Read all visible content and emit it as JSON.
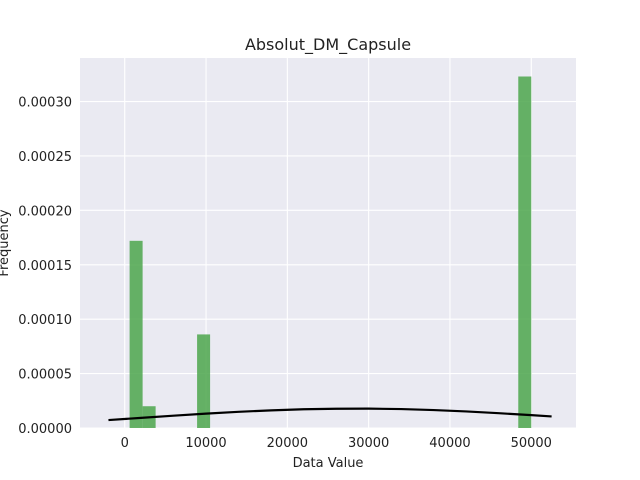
{
  "chart_data": {
    "type": "bar",
    "title": "Absolut_DM_Capsule",
    "xlabel": "Data Value",
    "ylabel": "Frequency",
    "xlim": [
      -5500,
      55500
    ],
    "ylim": [
      0,
      0.00034
    ],
    "x_ticks": [
      0,
      10000,
      20000,
      30000,
      40000,
      50000
    ],
    "x_tick_labels": [
      "0",
      "10000",
      "20000",
      "30000",
      "40000",
      "50000"
    ],
    "y_ticks": [
      0,
      5e-05,
      0.0001,
      0.00015,
      0.0002,
      0.00025,
      0.0003
    ],
    "y_tick_labels": [
      "0.00000",
      "0.00005",
      "0.00010",
      "0.00015",
      "0.00020",
      "0.00025",
      "0.00030"
    ],
    "grid": true,
    "bar_color": "#4ca64c",
    "line_color": "#000000",
    "plot_background": "#eaeaf2",
    "bars": [
      {
        "x0": 600,
        "x1": 2200,
        "value": 0.000172
      },
      {
        "x0": 2200,
        "x1": 3800,
        "value": 2e-05
      },
      {
        "x0": 8900,
        "x1": 10500,
        "value": 8.6e-05
      },
      {
        "x0": 48400,
        "x1": 50000,
        "value": 0.000323
      }
    ],
    "density_curve": {
      "x": [
        -2000,
        2000,
        6000,
        10000,
        14000,
        18000,
        22000,
        26000,
        30000,
        34000,
        38000,
        42000,
        46000,
        50000,
        52500
      ],
      "y": [
        7.3e-06,
        9.3e-06,
        1.13e-05,
        1.32e-05,
        1.49e-05,
        1.62e-05,
        1.72e-05,
        1.77e-05,
        1.78e-05,
        1.74e-05,
        1.65e-05,
        1.52e-05,
        1.36e-05,
        1.18e-05,
        1.06e-05
      ]
    }
  }
}
